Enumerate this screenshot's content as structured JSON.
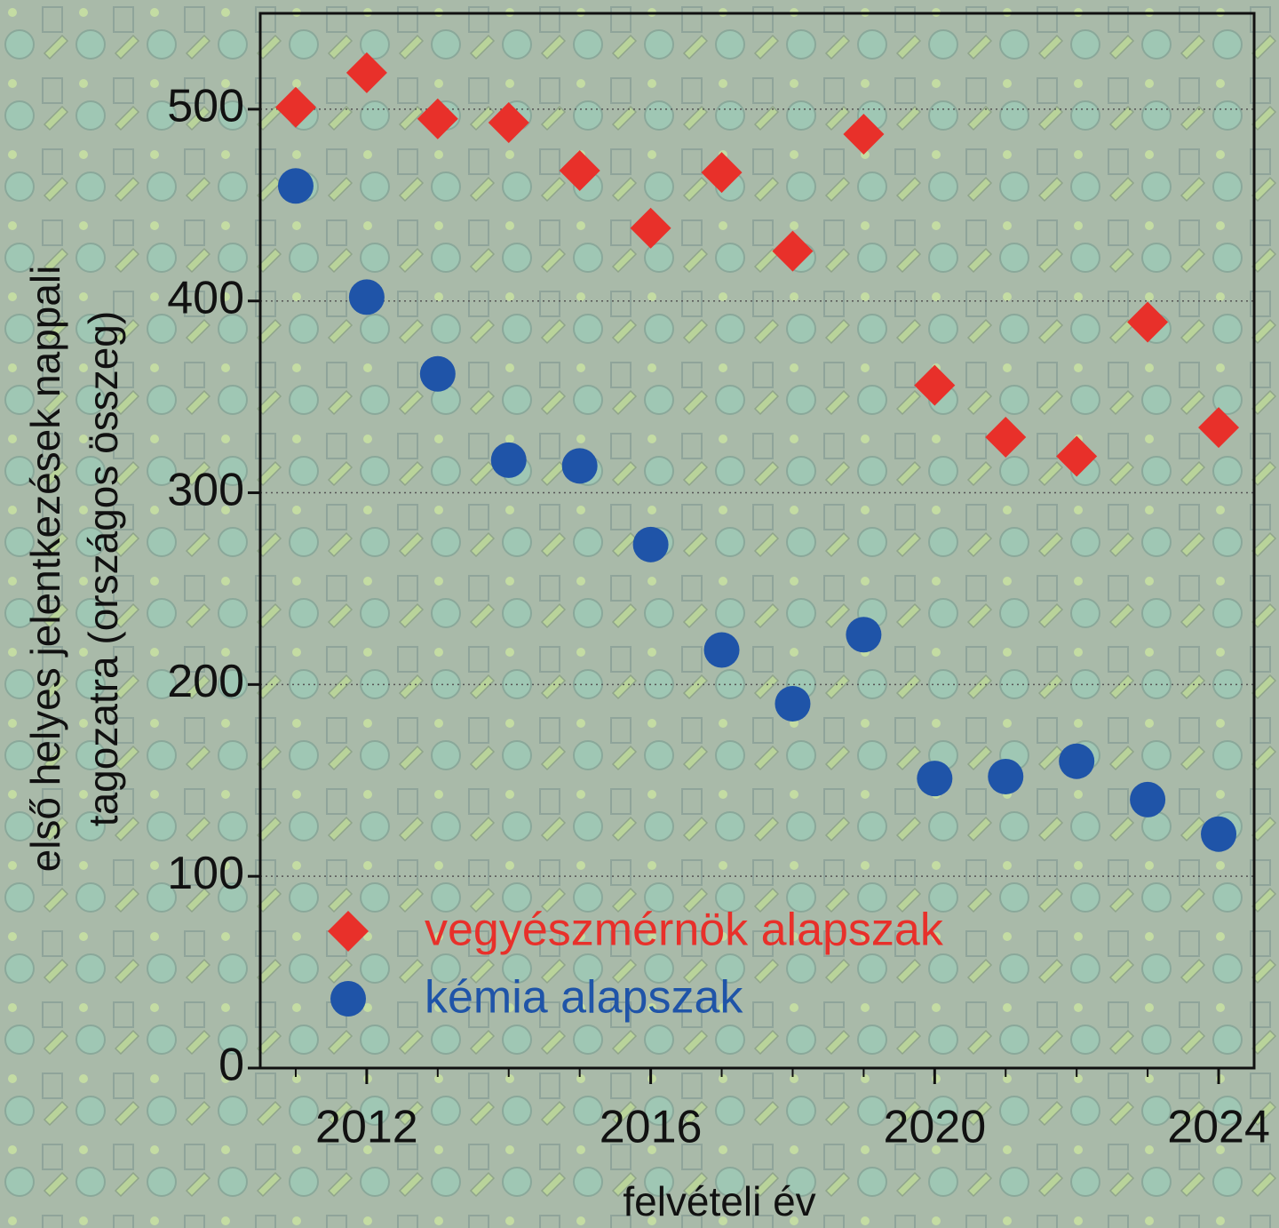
{
  "chart_data": {
    "type": "scatter",
    "x_label": "felvételi év",
    "y_label": [
      "első helyes jelentkezések nappali",
      "tagozatra (országos összeg)"
    ],
    "x": [
      2011,
      2012,
      2013,
      2014,
      2015,
      2016,
      2017,
      2018,
      2019,
      2020,
      2021,
      2022,
      2023,
      2024
    ],
    "series": [
      {
        "name": "vegyészmérnök alapszak",
        "color": "#e8302a",
        "marker": "diamond",
        "values": [
          501,
          519,
          495,
          493,
          468,
          438,
          467,
          426,
          487,
          356,
          329,
          319,
          389,
          334
        ]
      },
      {
        "name": "kémia alapszak",
        "color": "#1f54a8",
        "marker": "circle",
        "values": [
          460,
          402,
          362,
          317,
          314,
          273,
          218,
          190,
          226,
          151,
          152,
          160,
          140,
          122
        ]
      }
    ],
    "xlim": [
      2010.5,
      2024.5
    ],
    "xticks": [
      2012,
      2016,
      2020,
      2024
    ],
    "xminorticks": [
      2011,
      2012,
      2013,
      2014,
      2015,
      2016,
      2017,
      2018,
      2019,
      2020,
      2021,
      2022,
      2023,
      2024
    ],
    "ylim": [
      0,
      550
    ],
    "yticks": [
      0,
      100,
      200,
      300,
      400,
      500
    ],
    "grid": true,
    "legend": "lower left"
  }
}
